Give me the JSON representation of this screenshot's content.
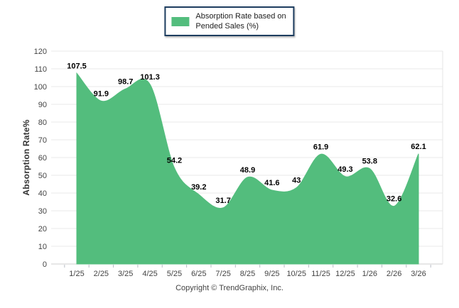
{
  "legend": {
    "label_line1": "Absorption Rate based on",
    "label_line2": "Pended Sales (%)"
  },
  "chart_data": {
    "type": "area",
    "title": "",
    "series_name": "Absorption Rate based on Pended Sales (%)",
    "categories": [
      "1/25",
      "2/25",
      "3/25",
      "4/25",
      "5/25",
      "6/25",
      "7/25",
      "8/25",
      "9/25",
      "10/25",
      "11/25",
      "12/25",
      "1/26",
      "2/26",
      "3/26"
    ],
    "values": [
      107.5,
      91.9,
      98.7,
      101.3,
      54.2,
      39.2,
      31.7,
      48.9,
      41.6,
      43,
      61.9,
      49.3,
      53.8,
      32.6,
      62.1
    ],
    "xlabel": "",
    "ylabel": "Absorption Rate%",
    "ylim": [
      0,
      120
    ],
    "ytick_step": 10,
    "grid": true,
    "legend_position": "top-center",
    "fill_color": "#53bd7d",
    "gridline_color": "#e8e8e8",
    "axis_line_color": "#cfcfcf",
    "tick_color": "#b9bdc6",
    "tick_label_color": "#444444",
    "data_label_color": "#000000",
    "legend_border_color": "#1d3d5f"
  },
  "footer": {
    "copyright": "Copyright © TrendGraphix, Inc."
  }
}
